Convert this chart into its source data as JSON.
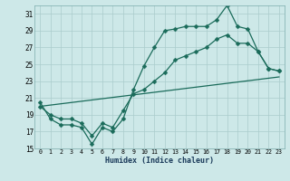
{
  "xlabel": "Humidex (Indice chaleur)",
  "background_color": "#cde8e8",
  "grid_color": "#aacccc",
  "line_color": "#1a6b5a",
  "xlim": [
    -0.5,
    23.5
  ],
  "ylim": [
    15,
    32
  ],
  "yticks": [
    15,
    17,
    19,
    21,
    23,
    25,
    27,
    29,
    31
  ],
  "xticks": [
    0,
    1,
    2,
    3,
    4,
    5,
    6,
    7,
    8,
    9,
    10,
    11,
    12,
    13,
    14,
    15,
    16,
    17,
    18,
    19,
    20,
    21,
    22,
    23
  ],
  "series": [
    {
      "x": [
        0,
        1,
        2,
        3,
        4,
        5,
        6,
        7,
        8,
        9,
        10,
        11,
        12,
        13,
        14,
        15,
        16,
        17,
        18,
        19,
        20,
        21,
        22,
        23
      ],
      "y": [
        20.5,
        18.5,
        17.8,
        17.8,
        17.5,
        15.5,
        17.5,
        17.0,
        18.5,
        22.0,
        24.8,
        27.0,
        29.0,
        29.2,
        29.5,
        29.5,
        29.5,
        30.3,
        32.0,
        29.5,
        29.2,
        26.5,
        24.5,
        24.2
      ],
      "has_marker": true,
      "markersize": 2.5,
      "linewidth": 0.9
    },
    {
      "x": [
        0,
        1,
        2,
        3,
        4,
        5,
        6,
        7,
        8,
        9,
        10,
        11,
        12,
        13,
        14,
        15,
        16,
        17,
        18,
        19,
        20,
        21,
        22,
        23
      ],
      "y": [
        20.0,
        19.0,
        18.5,
        18.5,
        18.0,
        16.5,
        18.0,
        17.5,
        19.5,
        21.5,
        22.0,
        23.0,
        24.0,
        25.5,
        26.0,
        26.5,
        27.0,
        28.0,
        28.5,
        27.5,
        27.5,
        26.5,
        24.5,
        24.2
      ],
      "has_marker": true,
      "markersize": 2.5,
      "linewidth": 0.9
    },
    {
      "x": [
        0,
        23
      ],
      "y": [
        20.0,
        23.5
      ],
      "has_marker": false,
      "markersize": 0,
      "linewidth": 0.9
    }
  ]
}
